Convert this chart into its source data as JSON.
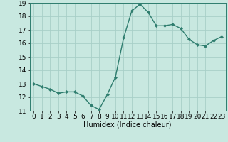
{
  "x": [
    0,
    1,
    2,
    3,
    4,
    5,
    6,
    7,
    8,
    9,
    10,
    11,
    12,
    13,
    14,
    15,
    16,
    17,
    18,
    19,
    20,
    21,
    22,
    23
  ],
  "y": [
    13.0,
    12.8,
    12.6,
    12.3,
    12.4,
    12.4,
    12.1,
    11.4,
    11.1,
    12.2,
    13.5,
    16.4,
    18.4,
    18.9,
    18.3,
    17.3,
    17.3,
    17.4,
    17.1,
    16.3,
    15.9,
    15.8,
    16.2,
    16.5
  ],
  "xlabel": "Humidex (Indice chaleur)",
  "ylim": [
    11,
    19
  ],
  "xlim_min": -0.5,
  "xlim_max": 23.5,
  "yticks": [
    11,
    12,
    13,
    14,
    15,
    16,
    17,
    18,
    19
  ],
  "xticks": [
    0,
    1,
    2,
    3,
    4,
    5,
    6,
    7,
    8,
    9,
    10,
    11,
    12,
    13,
    14,
    15,
    16,
    17,
    18,
    19,
    20,
    21,
    22,
    23
  ],
  "xtick_labels": [
    "0",
    "1",
    "2",
    "3",
    "4",
    "5",
    "6",
    "7",
    "8",
    "9",
    "10",
    "11",
    "12",
    "13",
    "14",
    "15",
    "16",
    "17",
    "18",
    "19",
    "20",
    "21",
    "22",
    "23"
  ],
  "line_color": "#2e7d6e",
  "marker": "D",
  "marker_size": 2.0,
  "background_color": "#c8e8e0",
  "grid_color": "#a8cfc8",
  "label_fontsize": 7,
  "tick_fontsize": 6.5
}
